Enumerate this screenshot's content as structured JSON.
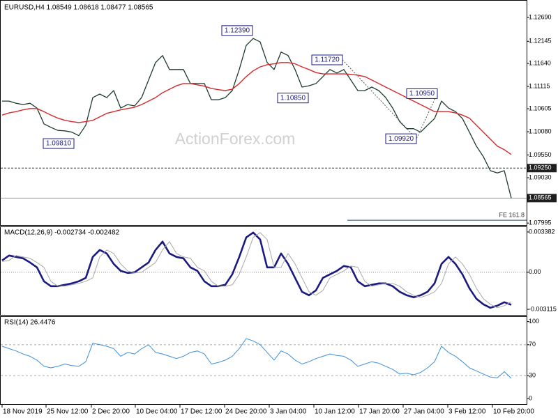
{
  "chart_data": [
    {
      "type": "line",
      "title": "EURUSD,H4  1.08549 1.08618 1.08477 1.08565",
      "watermark": "ActionForex.com",
      "xlim": [
        0,
        74
      ],
      "ylim": [
        1.0795,
        1.1304
      ],
      "yticks": [
        {
          "value": 1.1269,
          "label": "1.12690"
        },
        {
          "value": 1.12145,
          "label": "1.12145"
        },
        {
          "value": 1.1164,
          "label": "1.11640"
        },
        {
          "value": 1.11115,
          "label": "1.11115"
        },
        {
          "value": 1.10605,
          "label": "1.10605"
        },
        {
          "value": 1.1008,
          "label": "1.10080"
        },
        {
          "value": 1.0955,
          "label": "1.09550"
        },
        {
          "value": 1.0903,
          "label": "1.09030"
        },
        {
          "value": 1.07995,
          "label": "1.07995"
        }
      ],
      "series": [
        {
          "color": "#1d3b2c",
          "values": [
            1.1078,
            1.1078,
            1.1073,
            1.107,
            1.1073,
            1.1062,
            1.1026,
            1.1018,
            1.1011,
            1.101,
            1.1007,
            1.0999,
            1.1023,
            1.1086,
            1.1094,
            1.1086,
            1.1102,
            1.1062,
            1.107,
            1.1067,
            1.1086,
            1.1126,
            1.1166,
            1.1182,
            1.115,
            1.115,
            1.115,
            1.1118,
            1.1118,
            1.1118,
            1.1081,
            1.1081,
            1.1086,
            1.1102,
            1.115,
            1.1205,
            1.1221,
            1.1213,
            1.1166,
            1.115,
            1.119,
            1.1182,
            1.115,
            1.111,
            1.1113,
            1.1118,
            1.1134,
            1.115,
            1.1142,
            1.115,
            1.1126,
            1.1102,
            1.1102,
            1.111,
            1.1102,
            1.1086,
            1.1062,
            1.1031,
            1.1015,
            1.1015,
            1.1007,
            1.1023,
            1.1038,
            1.1078,
            1.1062,
            1.1054,
            1.1038,
            1.1007,
            1.0975,
            1.0951,
            1.0919,
            1.0914,
            1.0919,
            1.08565
          ]
        },
        {
          "color": "#d42a2a",
          "values": [
            1.1046,
            1.1051,
            1.1054,
            1.1058,
            1.1061,
            1.1061,
            1.1054,
            1.1046,
            1.1039,
            1.1034,
            1.1031,
            1.1029,
            1.1031,
            1.1034,
            1.1042,
            1.105,
            1.1054,
            1.1058,
            1.1061,
            1.1064,
            1.107,
            1.1078,
            1.1086,
            1.1097,
            1.1105,
            1.1113,
            1.1118,
            1.1118,
            1.1115,
            1.1112,
            1.1107,
            1.1104,
            1.1102,
            1.1105,
            1.1118,
            1.1134,
            1.1147,
            1.1156,
            1.1161,
            1.1163,
            1.1166,
            1.1166,
            1.1163,
            1.1156,
            1.115,
            1.1143,
            1.114,
            1.114,
            1.114,
            1.114,
            1.1139,
            1.1137,
            1.1134,
            1.1126,
            1.1118,
            1.111,
            1.1102,
            1.1094,
            1.1086,
            1.1078,
            1.107,
            1.1062,
            1.1054,
            1.1054,
            1.1054,
            1.1051,
            1.1046,
            1.1039,
            1.1023,
            1.1007,
            1.0991,
            1.0975,
            1.0967,
            1.0956
          ]
        }
      ],
      "annotations": [
        {
          "x": 35.9,
          "value": 1.1239,
          "label": "1.12390"
        },
        {
          "x": 10.3,
          "value": 1.0981,
          "label": "1.09810"
        },
        {
          "x": 43.9,
          "value": 1.1085,
          "label": "1.10850"
        },
        {
          "x": 48.8,
          "value": 1.1172,
          "label": "1.11720"
        },
        {
          "x": 59.4,
          "value": 1.0992,
          "label": "1.09920"
        },
        {
          "x": 62.4,
          "value": 1.1095,
          "label": "1.10950"
        }
      ],
      "levels": [
        {
          "value": 1.0925,
          "label": "1.09250",
          "style": "dashed"
        },
        {
          "value": 1.08565,
          "label": "1.08565",
          "style": "solid"
        }
      ],
      "projection": {
        "label": "FE 161.8",
        "value": 1.0806,
        "x": 49.5
      }
    },
    {
      "type": "line",
      "title": "MACD(12,26,9) -0.002734 -0.002482",
      "xlim": [
        0,
        74
      ],
      "ylim": [
        -0.00358,
        0.00379
      ],
      "yticks": [
        0.003382,
        {
          "value": 0,
          "label": "0.00"
        },
        -0.003115
      ],
      "zero_line": true,
      "series": [
        {
          "color": "#1a1a80",
          "values": [
            0.000995,
            0.001404,
            0.001287,
            0.00117,
            0.000819,
            0.00041,
            -0.000761,
            -0.00117,
            -0.00117,
            -0.001053,
            -0.000936,
            -0.000761,
            -0.000468,
            0.001287,
            0.001872,
            0.00158,
            0.000702,
            0.000117,
            -5.9e-05,
            0,
            0.00041,
            0.000819,
            0.001872,
            0.002574,
            0.00158,
            0.001287,
            0.00117,
            0.00041,
            0.000117,
            -0.000761,
            -0.00117,
            -0.00117,
            -0.001053,
            -0.000176,
            0.001287,
            0.002925,
            0.003335,
            0.00275,
            0.00041,
            0.00041,
            0.00158,
            0.000702,
            -0.000468,
            -0.001638,
            -0.001931,
            -0.001521,
            -0.000468,
            -0.000176,
            0.000117,
            0.000527,
            0.00041,
            -0.000761,
            -0.00117,
            -0.001053,
            -0.000936,
            -0.000936,
            -0.00117,
            -0.001638,
            -0.001931,
            -0.002106,
            -0.001931,
            -0.001638,
            -0.000936,
            0.000702,
            0.001287,
            0.000702,
            -0.000176,
            -0.001346,
            -0.002223,
            -0.002691,
            -0.002984,
            -0.002808,
            -0.002516,
            -0.002734
          ]
        },
        {
          "color": "#a8a8a8",
          "values": [
            0.0009,
            0.000995,
            0.001404,
            0.001287,
            0.00117,
            0.000819,
            0.00041,
            -0.000761,
            -0.00117,
            -0.00117,
            -0.001053,
            -0.000936,
            -0.000761,
            -0.000468,
            0.001287,
            0.001872,
            0.00158,
            0.000702,
            0.000117,
            -5.9e-05,
            0,
            0.00041,
            0.000819,
            0.001872,
            0.002574,
            0.00158,
            0.001287,
            0.00117,
            0.00041,
            0.000117,
            -0.000761,
            -0.00117,
            -0.00117,
            -0.001053,
            -0.000176,
            0.001287,
            0.002925,
            0.003335,
            0.00275,
            0.00041,
            0.00041,
            0.00158,
            0.000702,
            -0.000468,
            -0.001638,
            -0.001931,
            -0.001521,
            -0.000468,
            -0.000176,
            0.000117,
            0.000527,
            0.00041,
            -0.000761,
            -0.00117,
            -0.001053,
            -0.000936,
            -0.000936,
            -0.00117,
            -0.001638,
            -0.001931,
            -0.002106,
            -0.001931,
            -0.001638,
            -0.000936,
            0.000702,
            0.001287,
            0.000702,
            -0.000176,
            -0.001346,
            -0.002223,
            -0.002691,
            -0.002984,
            -0.002808,
            -0.002482
          ]
        }
      ]
    },
    {
      "type": "line",
      "title": "RSI(14) 26.4476",
      "xlim": [
        0,
        74
      ],
      "ylim": [
        -7,
        106
      ],
      "yticks": [
        100,
        70,
        30,
        0
      ],
      "levels": [
        70,
        30
      ],
      "xticks": [
        {
          "value": 0,
          "label": "18 Nov 2019"
        },
        {
          "value": 6.3,
          "label": "25 Nov 12:00"
        },
        {
          "value": 12.8,
          "label": "2 Dec 20:00"
        },
        {
          "value": 19.1,
          "label": "10 Dec 04:00"
        },
        {
          "value": 25.5,
          "label": "17 Dec 12:00"
        },
        {
          "value": 31.9,
          "label": "24 Dec 20:00"
        },
        {
          "value": 38.3,
          "label": "3 Jan 04:00"
        },
        {
          "value": 44.7,
          "label": "10 Jan 12:00"
        },
        {
          "value": 51.1,
          "label": "17 Jan 20:00"
        },
        {
          "value": 57.5,
          "label": "27 Jan 04:00"
        },
        {
          "value": 63.9,
          "label": "3 Feb 12:00"
        },
        {
          "value": 70.3,
          "label": "10 Feb 20:00"
        }
      ],
      "series": [
        {
          "color": "#3b8fd9",
          "values": [
            68,
            65,
            62,
            58,
            55,
            50,
            42,
            40,
            42,
            45,
            43,
            42,
            48,
            72,
            70,
            68,
            65,
            55,
            60,
            58,
            65,
            70,
            60,
            58,
            55,
            52,
            55,
            60,
            62,
            58,
            45,
            47,
            50,
            55,
            65,
            78,
            75,
            70,
            60,
            50,
            62,
            58,
            50,
            45,
            48,
            52,
            55,
            58,
            56,
            55,
            50,
            42,
            45,
            48,
            46,
            42,
            38,
            32,
            33,
            31,
            34,
            40,
            48,
            68,
            60,
            55,
            48,
            40,
            36,
            32,
            28,
            27,
            35,
            26.4476
          ]
        }
      ]
    }
  ]
}
